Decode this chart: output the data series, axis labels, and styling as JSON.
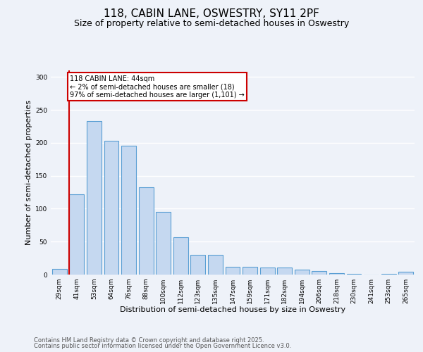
{
  "title_line1": "118, CABIN LANE, OSWESTRY, SY11 2PF",
  "title_line2": "Size of property relative to semi-detached houses in Oswestry",
  "xlabel": "Distribution of semi-detached houses by size in Oswestry",
  "ylabel": "Number of semi-detached properties",
  "categories": [
    "29sqm",
    "41sqm",
    "53sqm",
    "64sqm",
    "76sqm",
    "88sqm",
    "100sqm",
    "112sqm",
    "123sqm",
    "135sqm",
    "147sqm",
    "159sqm",
    "171sqm",
    "182sqm",
    "194sqm",
    "206sqm",
    "218sqm",
    "230sqm",
    "241sqm",
    "253sqm",
    "265sqm"
  ],
  "values": [
    9,
    122,
    233,
    203,
    196,
    133,
    95,
    57,
    30,
    30,
    12,
    12,
    11,
    11,
    7,
    5,
    2,
    1,
    0,
    1,
    4
  ],
  "bar_color": "#c5d8f0",
  "bar_edge_color": "#5a9fd4",
  "highlight_index": 1,
  "highlight_line_color": "#cc0000",
  "annotation_text": "118 CABIN LANE: 44sqm\n← 2% of semi-detached houses are smaller (18)\n97% of semi-detached houses are larger (1,101) →",
  "annotation_box_color": "#ffffff",
  "annotation_box_edge": "#cc0000",
  "footer_line1": "Contains HM Land Registry data © Crown copyright and database right 2025.",
  "footer_line2": "Contains public sector information licensed under the Open Government Licence v3.0.",
  "ylim": [
    0,
    310
  ],
  "yticks": [
    0,
    50,
    100,
    150,
    200,
    250,
    300
  ],
  "background_color": "#eef2f9",
  "grid_color": "#ffffff",
  "title_fontsize": 11,
  "subtitle_fontsize": 9,
  "axis_label_fontsize": 8,
  "tick_fontsize": 6.5,
  "footer_fontsize": 6,
  "annot_fontsize": 7
}
